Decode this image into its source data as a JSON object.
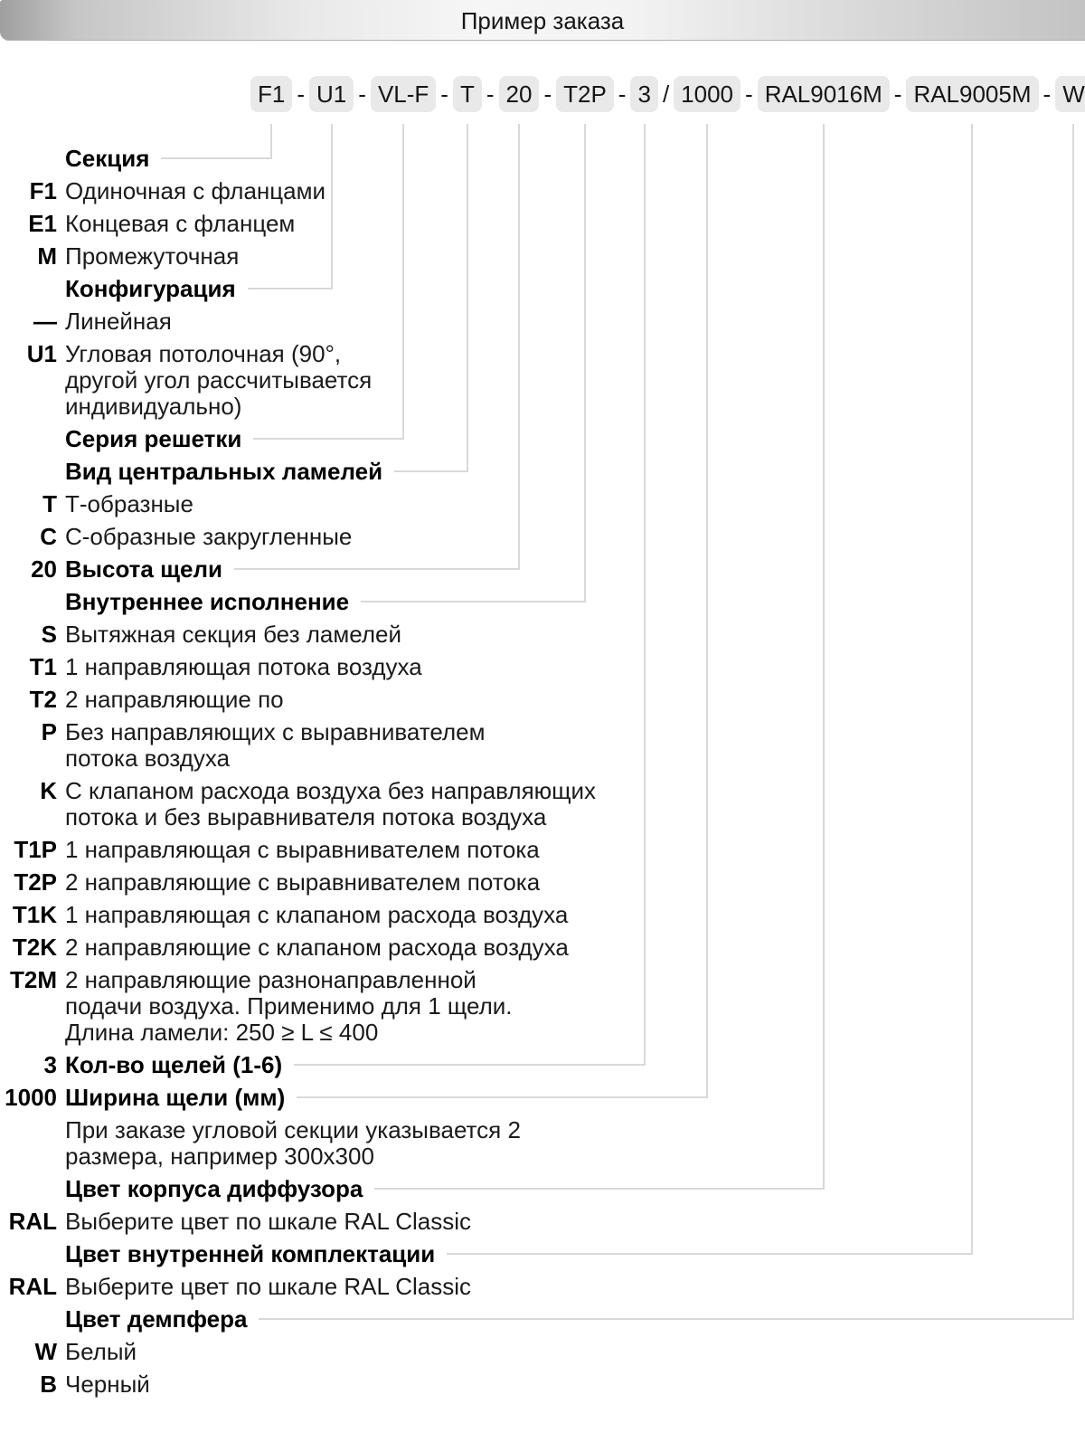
{
  "title_bar": {
    "title": "Пример заказа"
  },
  "order_code": {
    "segments": [
      {
        "type": "box",
        "key": "F1",
        "text": "F1"
      },
      {
        "type": "sep",
        "text": "-"
      },
      {
        "type": "box",
        "key": "U1",
        "text": "U1"
      },
      {
        "type": "sep",
        "text": "-"
      },
      {
        "type": "box",
        "key": "VL-F",
        "text": "VL-F"
      },
      {
        "type": "sep",
        "text": "-"
      },
      {
        "type": "box",
        "key": "T",
        "text": "T"
      },
      {
        "type": "sep",
        "text": "-"
      },
      {
        "type": "box",
        "key": "20",
        "text": "20"
      },
      {
        "type": "sep",
        "text": "-"
      },
      {
        "type": "box",
        "key": "T2P",
        "text": "T2P"
      },
      {
        "type": "sep",
        "text": "-"
      },
      {
        "type": "box",
        "key": "3",
        "text": "3"
      },
      {
        "type": "sep",
        "text": "/"
      },
      {
        "type": "box",
        "key": "1000",
        "text": "1000"
      },
      {
        "type": "sep",
        "text": "-"
      },
      {
        "type": "box",
        "key": "RAL9016M",
        "text": "RAL9016M"
      },
      {
        "type": "sep",
        "text": "-"
      },
      {
        "type": "box",
        "key": "RAL9005M",
        "text": "RAL9005M"
      },
      {
        "type": "sep",
        "text": "-"
      },
      {
        "type": "box",
        "key": "W",
        "text": "W"
      }
    ]
  },
  "legend": {
    "rows": [
      {
        "code": "",
        "text": "Секция",
        "style": "header",
        "connect": "F1"
      },
      {
        "code": "F1",
        "text": "Одиночная с фланцами",
        "style": "item"
      },
      {
        "code": "E1",
        "text": "Концевая с фланцем",
        "style": "item"
      },
      {
        "code": "M",
        "text": "Промежуточная",
        "style": "item"
      },
      {
        "code": "",
        "text": "Конфигурация",
        "style": "header",
        "connect": "U1"
      },
      {
        "code": "—",
        "text": "Линейная",
        "style": "item"
      },
      {
        "code": "U1",
        "text": "Угловая потолочная (90°,\nдругой угол рассчитывается\nиндивидуально)",
        "style": "item"
      },
      {
        "code": "",
        "text": "Серия решетки",
        "style": "header",
        "connect": "VL-F"
      },
      {
        "code": "",
        "text": "Вид центральных ламелей",
        "style": "header",
        "connect": "T"
      },
      {
        "code": "T",
        "text": "Т-образные",
        "style": "item"
      },
      {
        "code": "C",
        "text": "С-образные закругленные",
        "style": "item"
      },
      {
        "code": "20",
        "text": "Высота щели",
        "style": "header",
        "connect": "20"
      },
      {
        "code": "",
        "text": "Внутреннее исполнение",
        "style": "header",
        "connect": "T2P"
      },
      {
        "code": "S",
        "text": "Вытяжная секция без ламелей",
        "style": "item"
      },
      {
        "code": "T1",
        "text": "1 направляющая потока воздуха",
        "style": "item"
      },
      {
        "code": "T2",
        "text": "2 направляющие по",
        "style": "item"
      },
      {
        "code": "P",
        "text": "Без направляющих с выравнивателем\nпотока воздуха",
        "style": "item"
      },
      {
        "code": "K",
        "text": "С клапаном расхода воздуха без направляющих\nпотока и без выравнивателя потока воздуха",
        "style": "item"
      },
      {
        "code": "T1P",
        "text": "1 направляющая с выравнивателем потока",
        "style": "item"
      },
      {
        "code": "T2P",
        "text": "2 направляющие с выравнивателем потока",
        "style": "item"
      },
      {
        "code": "T1K",
        "text": "1 направляющая с клапаном расхода воздуха",
        "style": "item"
      },
      {
        "code": "T2K",
        "text": "2 направляющие с клапаном расхода воздуха",
        "style": "item"
      },
      {
        "code": "T2M",
        "text": "2 направляющие разнонаправленной\nподачи воздуха. Применимо для 1 щели.\nДлина ламели: 250 ≥ L ≤ 400",
        "style": "item"
      },
      {
        "code": "3",
        "text": "Кол-во щелей (1-6)",
        "style": "header",
        "connect": "3"
      },
      {
        "code": "1000",
        "text": "Ширина щели (мм)",
        "style": "header",
        "connect": "1000"
      },
      {
        "code": "",
        "text": "При заказе угловой секции указывается 2\nразмера, например 300x300",
        "style": "note"
      },
      {
        "code": "",
        "text": "Цвет корпуса диффузора",
        "style": "header",
        "connect": "RAL9016M"
      },
      {
        "code": "RAL",
        "text": "Выберите цвет по шкале RAL Classic",
        "style": "item"
      },
      {
        "code": "",
        "text": "Цвет внутренней комплектации",
        "style": "header",
        "connect": "RAL9005M"
      },
      {
        "code": "RAL",
        "text": "Выберите цвет по шкале RAL Classic",
        "style": "item"
      },
      {
        "code": "",
        "text": "Цвет демпфера",
        "style": "header",
        "connect": "W"
      },
      {
        "code": "W",
        "text": "Белый",
        "style": "item"
      },
      {
        "code": "B",
        "text": "Черный",
        "style": "item"
      }
    ]
  },
  "colors": {
    "code_box_bg": "#e9e9e9",
    "connector": "#d9d9d9",
    "text": "#141414"
  }
}
